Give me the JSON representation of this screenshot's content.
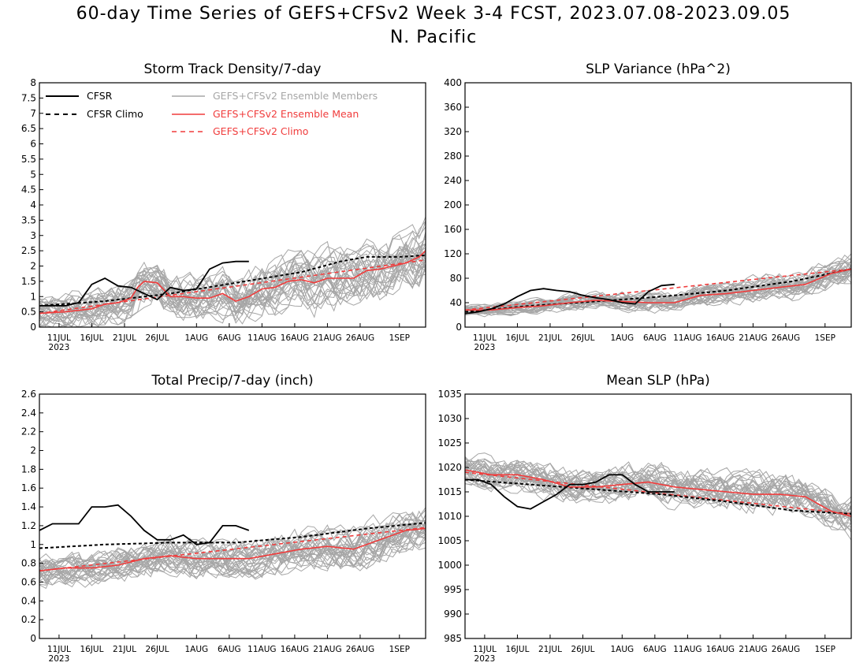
{
  "title": "60-day Time Series of GEFS+CFSv2 Week 3-4 FCST, 2023.07.08-2023.09.05",
  "subtitle": "N. Pacific",
  "legend": {
    "cfsr": "CFSR",
    "cfsr_climo": "CFSR Climo",
    "members": "GEFS+CFSv2 Ensemble Members",
    "ens_mean": "GEFS+CFSv2 Ensemble Mean",
    "ens_climo": "GEFS+CFSv2 Climo"
  },
  "colors": {
    "cfsr": "#000000",
    "members": "#a6a6a6",
    "ens": "#f03c3c"
  },
  "x_axis": {
    "ticks": [
      {
        "day": 3,
        "label": "11JUL"
      },
      {
        "day": 8,
        "label": "16JUL"
      },
      {
        "day": 13,
        "label": "21JUL"
      },
      {
        "day": 18,
        "label": "26JUL"
      },
      {
        "day": 24,
        "label": "1AUG"
      },
      {
        "day": 29,
        "label": "6AUG"
      },
      {
        "day": 34,
        "label": "11AUG"
      },
      {
        "day": 39,
        "label": "16AUG"
      },
      {
        "day": 44,
        "label": "21AUG"
      },
      {
        "day": 49,
        "label": "26AUG"
      },
      {
        "day": 55,
        "label": "1SEP"
      }
    ],
    "year_label": "2023",
    "range_days": [
      0,
      59
    ]
  },
  "chart_data": [
    {
      "type": "line",
      "title": "Storm Track Density/7-day",
      "ylim": [
        0,
        8
      ],
      "yticks": [
        "0",
        "0.5",
        "1",
        "1.5",
        "2",
        "2.5",
        "3",
        "3.5",
        "4",
        "4.5",
        "5",
        "5.5",
        "6",
        "6.5",
        "7",
        "7.5",
        "8"
      ],
      "show_legend": true,
      "cfsr": {
        "x": [
          0,
          2,
          4,
          6,
          8,
          10,
          12,
          14,
          16,
          18,
          20,
          22,
          24,
          26,
          28,
          30,
          32
        ],
        "y": [
          0.7,
          0.7,
          0.7,
          0.8,
          1.4,
          1.6,
          1.35,
          1.3,
          1.1,
          0.9,
          1.3,
          1.2,
          1.25,
          1.9,
          2.1,
          2.15,
          2.15
        ]
      },
      "cfsr_climo": {
        "x": [
          0,
          10,
          20,
          30,
          40,
          46,
          50,
          55,
          59
        ],
        "y": [
          0.7,
          0.85,
          1.1,
          1.45,
          1.8,
          2.15,
          2.3,
          2.3,
          2.35
        ]
      },
      "ens_mean": {
        "x": [
          0,
          4,
          6,
          8,
          10,
          12,
          14,
          15,
          16,
          18,
          20,
          22,
          24,
          26,
          28,
          30,
          32,
          34,
          36,
          38,
          40,
          42,
          44,
          46,
          48,
          50,
          52,
          54,
          56,
          58,
          59
        ],
        "y": [
          0.45,
          0.5,
          0.55,
          0.6,
          0.75,
          0.8,
          0.95,
          1.3,
          1.5,
          1.45,
          1.0,
          1.0,
          0.95,
          0.95,
          1.1,
          0.85,
          1.0,
          1.25,
          1.3,
          1.5,
          1.55,
          1.45,
          1.6,
          1.6,
          1.6,
          1.85,
          1.9,
          2.0,
          2.1,
          2.3,
          2.5
        ]
      },
      "ens_climo": {
        "x": [
          0,
          59
        ],
        "y": [
          0.45,
          2.2
        ]
      },
      "members": {
        "count": 30,
        "spread_start": 0.5,
        "spread_end": 1.0,
        "clip_min": 0
      }
    },
    {
      "type": "line",
      "title": "SLP Variance (hPa^2)",
      "ylim": [
        0,
        400
      ],
      "yticks": [
        "0",
        "40",
        "80",
        "120",
        "160",
        "200",
        "240",
        "280",
        "320",
        "360",
        "400"
      ],
      "show_legend": false,
      "cfsr": {
        "x": [
          0,
          2,
          4,
          6,
          8,
          10,
          12,
          14,
          16,
          18,
          20,
          22,
          24,
          26,
          28,
          30,
          32
        ],
        "y": [
          22,
          25,
          30,
          38,
          50,
          60,
          63,
          60,
          58,
          52,
          48,
          45,
          40,
          38,
          58,
          68,
          70
        ]
      },
      "cfsr_climo": {
        "x": [
          0,
          10,
          20,
          30,
          40,
          50,
          59
        ],
        "y": [
          25,
          35,
          42,
          50,
          60,
          75,
          95
        ]
      },
      "ens_mean": {
        "x": [
          0,
          4,
          8,
          12,
          16,
          20,
          24,
          28,
          32,
          36,
          40,
          44,
          48,
          52,
          56,
          59
        ],
        "y": [
          28,
          28,
          32,
          35,
          40,
          44,
          42,
          40,
          40,
          52,
          55,
          60,
          65,
          70,
          88,
          95
        ]
      },
      "ens_climo": {
        "x": [
          0,
          59
        ],
        "y": [
          28,
          95
        ]
      },
      "members": {
        "count": 30,
        "spread_start": 8,
        "spread_end": 22,
        "clip_min": 0
      }
    },
    {
      "type": "line",
      "title": "Total Precip/7-day (inch)",
      "ylim": [
        0,
        2.6
      ],
      "yticks": [
        "0",
        "0.2",
        "0.4",
        "0.6",
        "0.8",
        "1",
        "1.2",
        "1.4",
        "1.6",
        "1.8",
        "2",
        "2.2",
        "2.4",
        "2.6"
      ],
      "show_legend": false,
      "cfsr": {
        "x": [
          0,
          2,
          4,
          6,
          8,
          10,
          12,
          14,
          16,
          18,
          20,
          22,
          24,
          26,
          28,
          30,
          32
        ],
        "y": [
          1.15,
          1.22,
          1.22,
          1.22,
          1.4,
          1.4,
          1.42,
          1.3,
          1.15,
          1.05,
          1.05,
          1.1,
          1.0,
          1.02,
          1.2,
          1.2,
          1.15
        ]
      },
      "cfsr_climo": {
        "x": [
          0,
          10,
          20,
          30,
          40,
          50,
          59
        ],
        "y": [
          0.96,
          1.0,
          1.02,
          1.02,
          1.08,
          1.17,
          1.23
        ]
      },
      "ens_mean": {
        "x": [
          0,
          4,
          8,
          12,
          16,
          20,
          24,
          28,
          32,
          36,
          40,
          44,
          48,
          52,
          56,
          59
        ],
        "y": [
          0.72,
          0.75,
          0.75,
          0.78,
          0.85,
          0.88,
          0.85,
          0.85,
          0.85,
          0.9,
          0.95,
          0.98,
          0.95,
          1.05,
          1.15,
          1.17
        ]
      },
      "ens_climo": {
        "x": [
          0,
          59
        ],
        "y": [
          0.72,
          1.18
        ]
      },
      "members": {
        "count": 30,
        "spread_start": 0.15,
        "spread_end": 0.22,
        "clip_min": 0
      }
    },
    {
      "type": "line",
      "title": "Mean SLP (hPa)",
      "ylim": [
        985,
        1035
      ],
      "yticks": [
        "985",
        "990",
        "995",
        "1000",
        "1005",
        "1010",
        "1015",
        "1020",
        "1025",
        "1030",
        "1035"
      ],
      "show_legend": false,
      "cfsr": {
        "x": [
          0,
          2,
          4,
          6,
          8,
          10,
          12,
          14,
          16,
          18,
          20,
          22,
          24,
          26,
          28,
          30,
          32
        ],
        "y": [
          1017.5,
          1017.5,
          1016.5,
          1014,
          1012,
          1011.5,
          1013,
          1014.5,
          1016.5,
          1016.5,
          1017,
          1018.5,
          1018.5,
          1016.5,
          1015,
          1015,
          1015
        ]
      },
      "cfsr_climo": {
        "x": [
          0,
          10,
          20,
          30,
          40,
          50,
          59
        ],
        "y": [
          1017.5,
          1016.5,
          1015.5,
          1014.5,
          1013,
          1011.2,
          1010.5
        ]
      },
      "ens_mean": {
        "x": [
          0,
          4,
          8,
          12,
          16,
          20,
          24,
          28,
          32,
          36,
          40,
          44,
          48,
          52,
          56,
          59
        ],
        "y": [
          1019.5,
          1018.5,
          1018.5,
          1017.5,
          1016,
          1016,
          1016.5,
          1017,
          1016,
          1015.5,
          1015,
          1014.5,
          1014.5,
          1014,
          1011,
          1010
        ]
      },
      "ens_climo": {
        "x": [
          0,
          59
        ],
        "y": [
          1019,
          1010.5
        ]
      },
      "members": {
        "count": 30,
        "spread_start": 3,
        "spread_end": 4,
        "clip_min": 985
      }
    }
  ]
}
